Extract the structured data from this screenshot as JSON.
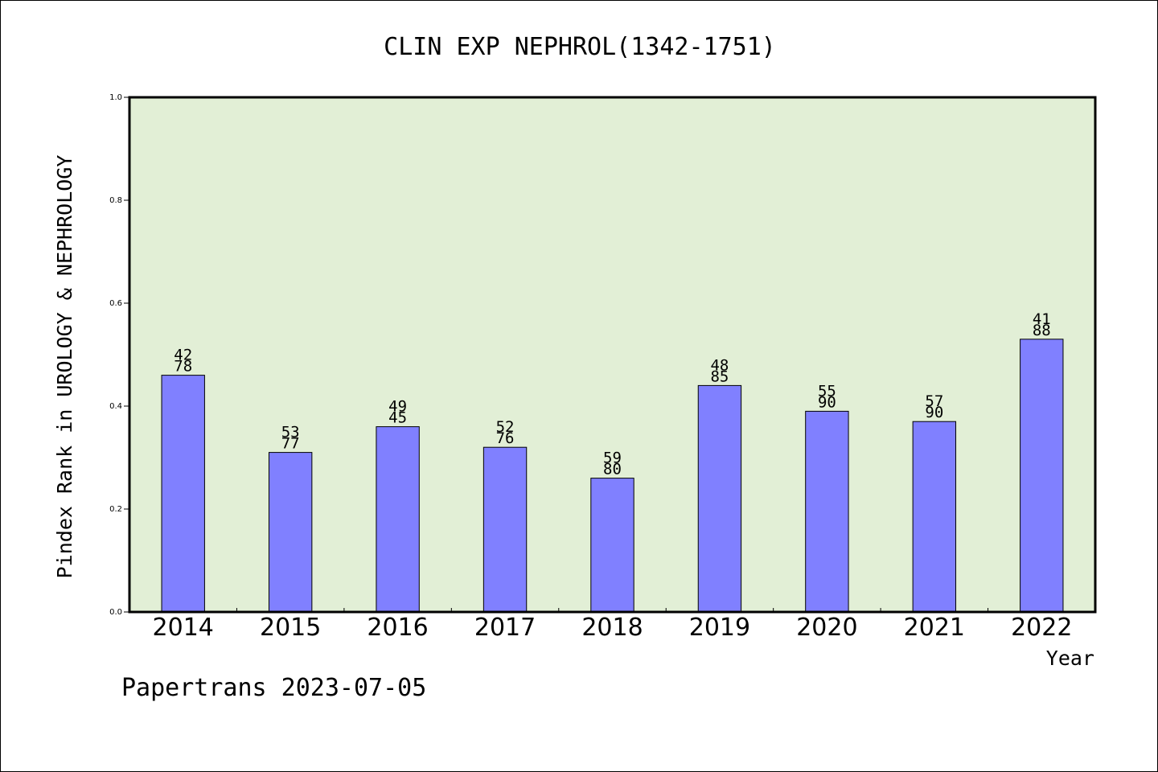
{
  "chart_data": {
    "type": "bar",
    "title": "CLIN EXP NEPHROL(1342-1751)",
    "xlabel": "Year",
    "ylabel": "Pindex Rank in UROLOGY & NEPHROLOGY",
    "categories": [
      "2014",
      "2015",
      "2016",
      "2017",
      "2018",
      "2019",
      "2020",
      "2021",
      "2022"
    ],
    "values": [
      0.46,
      0.31,
      0.36,
      0.32,
      0.26,
      0.44,
      0.39,
      0.37,
      0.53
    ],
    "labels_top": [
      "42",
      "53",
      "49",
      "52",
      "59",
      "48",
      "55",
      "57",
      "41"
    ],
    "labels_bottom": [
      "78",
      "77",
      "45",
      "76",
      "80",
      "85",
      "90",
      "90",
      "88"
    ],
    "ylim": [
      0,
      1.0
    ],
    "yticks": [
      "0.0",
      "0.2",
      "0.4",
      "0.6",
      "0.8",
      "1.0"
    ],
    "grid": false,
    "colors": {
      "plot_background": "#e2efd6",
      "bar_fill": "#8080ff",
      "bar_stroke": "#000000"
    }
  },
  "footer": {
    "credit": "Papertrans 2023-07-05"
  }
}
